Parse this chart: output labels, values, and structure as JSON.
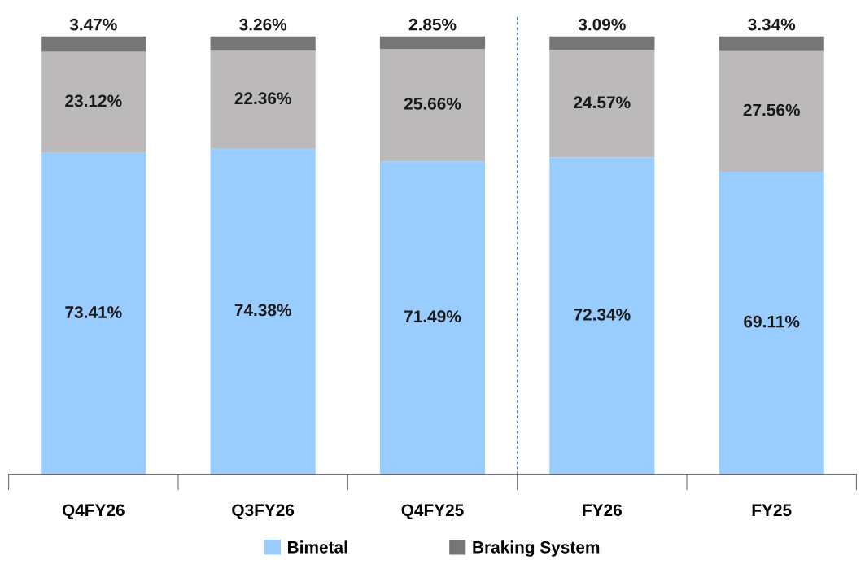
{
  "chart_data": {
    "type": "bar",
    "stacked": true,
    "grid": false,
    "legend": "bottom",
    "categories": [
      "Q4FY26",
      "Q3FY26",
      "Q4FY25",
      "FY26",
      "FY25"
    ],
    "series": [
      {
        "name": "Bimetal",
        "color": "#99ccff",
        "values": [
          73.41,
          74.38,
          71.49,
          72.34,
          69.11
        ],
        "value_labels": [
          "73.41%",
          "74.38%",
          "71.49%",
          "72.34%",
          "69.11%"
        ]
      },
      {
        "color": "#bbb9b9",
        "values": [
          23.12,
          22.36,
          25.66,
          24.57,
          27.56
        ],
        "value_labels": [
          "23.12%",
          "22.36%",
          "25.66%",
          "24.57%",
          "27.56%"
        ]
      },
      {
        "name": "Braking System",
        "color": "#767676",
        "values": [
          3.47,
          3.26,
          2.85,
          3.09,
          3.34
        ],
        "value_labels": [
          "3.47%",
          "3.26%",
          "2.85%",
          "3.09%",
          "3.34%"
        ]
      }
    ]
  }
}
